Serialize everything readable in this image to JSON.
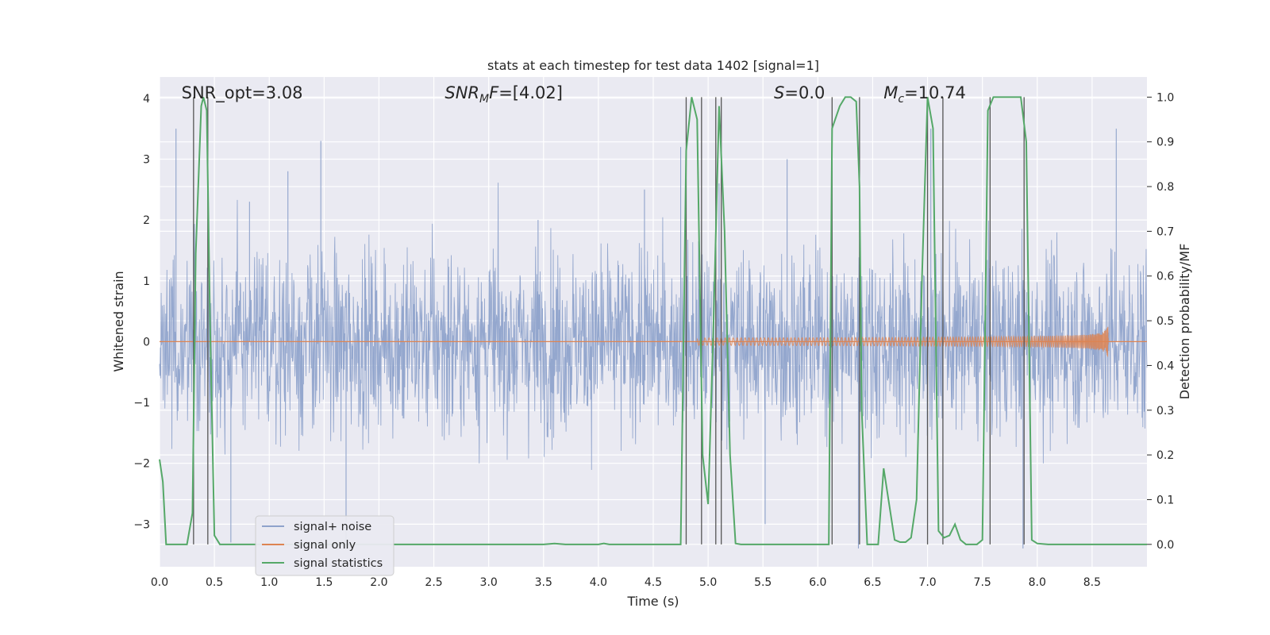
{
  "chart_data": {
    "type": "line",
    "title": "stats at each timestep for test data 1402 [signal=1]",
    "xlabel": "Time (s)",
    "ylabel": "Whitened strain",
    "y2label": "Detection probability/MF",
    "xlim": [
      0,
      9.0
    ],
    "ylim": [
      -3.7,
      4.35
    ],
    "y2lim": [
      -0.05,
      1.045
    ],
    "xticks": [
      0.0,
      0.5,
      1.0,
      1.5,
      2.0,
      2.5,
      3.0,
      3.5,
      4.0,
      4.5,
      5.0,
      5.5,
      6.0,
      6.5,
      7.0,
      7.5,
      8.0,
      8.5
    ],
    "xtick_labels": [
      "0.0",
      "0.5",
      "1.0",
      "1.5",
      "2.0",
      "2.5",
      "3.0",
      "3.5",
      "4.0",
      "4.5",
      "5.0",
      "5.5",
      "6.0",
      "6.5",
      "7.0",
      "7.5",
      "8.0",
      "8.5"
    ],
    "yticks": [
      4,
      3,
      2,
      1,
      0,
      -1,
      -2,
      -3
    ],
    "ytick_labels": [
      "4",
      "3",
      "2",
      "1",
      "0",
      "−1",
      "−2",
      "−3"
    ],
    "y2ticks": [
      1.0,
      0.9,
      0.8,
      0.7,
      0.6,
      0.5,
      0.4,
      0.3,
      0.2,
      0.1,
      0.0
    ],
    "y2tick_labels": [
      "1.0",
      "0.9",
      "0.8",
      "0.7",
      "0.6",
      "0.5",
      "0.4",
      "0.3",
      "0.2",
      "0.1",
      "0.0"
    ],
    "annotations": [
      {
        "text": "SNR_opt=3.08",
        "x": 0.2
      },
      {
        "text": "SNR_MF=[4.02]",
        "x": 2.6
      },
      {
        "text": "S=0.0",
        "x": 5.6
      },
      {
        "text": "M_c=10.74",
        "x": 6.6
      }
    ],
    "series": [
      {
        "name": "signal+ noise",
        "color": "#8fa3cb",
        "description": "whitened strain noise trace, roughly Gaussian, |amplitude| up to about 3.4",
        "peak_x": [
          0.15,
          0.65,
          0.82,
          1.17,
          1.47,
          1.7,
          3.45,
          4.42,
          4.75,
          5.1,
          5.52,
          5.72,
          6.37,
          7.03,
          7.87,
          8.72
        ],
        "peak_y": [
          3.5,
          -3.3,
          2.3,
          2.8,
          3.3,
          -3.4,
          2.0,
          2.5,
          3.2,
          2.6,
          -3.0,
          3.0,
          -3.4,
          3.5,
          -3.4,
          3.5
        ]
      },
      {
        "name": "signal only",
        "color": "#dd8452",
        "description": "chirp waveform with amplitude growing toward merger near t=8.65 s",
        "merger_time": 8.65,
        "peak_amplitude": 0.52,
        "start_time": 4.9
      },
      {
        "name": "signal statistics",
        "color": "#55a868",
        "axis": "right",
        "x": [
          0.0,
          0.03,
          0.06,
          0.2,
          0.25,
          0.3,
          0.33,
          0.38,
          0.4,
          0.43,
          0.46,
          0.5,
          0.55,
          0.7,
          1.0,
          3.5,
          3.6,
          3.7,
          4.0,
          4.05,
          4.1,
          4.5,
          4.75,
          4.8,
          4.85,
          4.9,
          4.95,
          5.0,
          5.05,
          5.1,
          5.15,
          5.2,
          5.25,
          5.3,
          6.1,
          6.13,
          6.2,
          6.25,
          6.3,
          6.35,
          6.38,
          6.4,
          6.45,
          6.55,
          6.6,
          6.65,
          6.7,
          6.75,
          6.8,
          6.85,
          6.9,
          6.95,
          7.0,
          7.05,
          7.1,
          7.15,
          7.2,
          7.25,
          7.3,
          7.35,
          7.4,
          7.45,
          7.5,
          7.55,
          7.6,
          7.65,
          7.7,
          7.85,
          7.9,
          7.95,
          8.0,
          8.1,
          8.5,
          9.0
        ],
        "y": [
          0.19,
          0.14,
          0.0,
          0.0,
          0.0,
          0.07,
          0.65,
          0.98,
          1.0,
          0.97,
          0.5,
          0.02,
          0.0,
          0.0,
          0.0,
          0.0,
          0.002,
          0.0,
          0.0,
          0.002,
          0.0,
          0.0,
          0.0,
          0.88,
          1.0,
          0.95,
          0.2,
          0.09,
          0.5,
          0.98,
          0.7,
          0.2,
          0.002,
          0.0,
          0.0,
          0.93,
          0.98,
          1.0,
          1.0,
          0.99,
          0.8,
          0.3,
          0.0,
          0.0,
          0.17,
          0.09,
          0.01,
          0.005,
          0.005,
          0.015,
          0.1,
          0.6,
          1.0,
          0.93,
          0.03,
          0.015,
          0.02,
          0.045,
          0.01,
          0.0,
          0.0,
          0.0,
          0.01,
          0.97,
          1.0,
          1.0,
          1.0,
          1.0,
          0.9,
          0.01,
          0.002,
          0.0,
          0.0,
          0.0
        ]
      }
    ],
    "vertical_lines": [
      0.31,
      0.44,
      4.8,
      4.94,
      5.07,
      5.12,
      6.13,
      6.38,
      7.0,
      7.14,
      7.57,
      7.88
    ],
    "legend": {
      "placement": "lower-left",
      "entries": [
        "signal+ noise",
        "signal only",
        "signal statistics"
      ]
    },
    "grid": true,
    "background": "#eaeaf2"
  }
}
